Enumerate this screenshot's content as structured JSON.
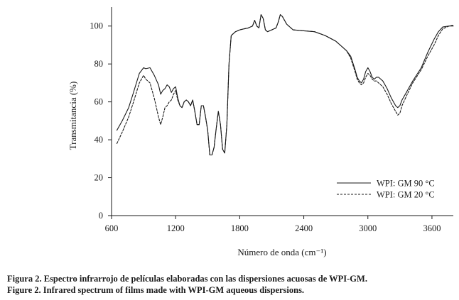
{
  "chart_data": {
    "type": "line",
    "title": "",
    "xlabel": "Número de onda (cm⁻¹)",
    "ylabel": "Transmitancia (%)",
    "xlim": [
      600,
      3800
    ],
    "ylim": [
      0,
      110
    ],
    "xticks": [
      600,
      1200,
      1800,
      2400,
      3000,
      3600
    ],
    "xtick_labels": [
      "600",
      "1200",
      "1800",
      "2400",
      "3000",
      "3600"
    ],
    "yticks": [
      0,
      20,
      40,
      60,
      80,
      100
    ],
    "ytick_labels": [
      "0",
      "20",
      "40",
      "60",
      "80",
      "100"
    ],
    "grid": false,
    "legend_position": "bottom-right",
    "series": [
      {
        "name": "WPI: GM 90 °C",
        "style": "solid",
        "color": "#1a1a1a",
        "x": [
          650,
          700,
          760,
          800,
          860,
          900,
          920,
          960,
          1000,
          1040,
          1060,
          1080,
          1100,
          1120,
          1140,
          1160,
          1180,
          1200,
          1220,
          1240,
          1260,
          1280,
          1300,
          1320,
          1340,
          1360,
          1380,
          1400,
          1420,
          1440,
          1460,
          1480,
          1500,
          1520,
          1540,
          1560,
          1580,
          1600,
          1620,
          1640,
          1660,
          1680,
          1700,
          1720,
          1760,
          1800,
          1840,
          1880,
          1920,
          1940,
          1960,
          1980,
          2000,
          2020,
          2040,
          2060,
          2100,
          2140,
          2160,
          2180,
          2200,
          2240,
          2300,
          2400,
          2500,
          2600,
          2700,
          2800,
          2840,
          2880,
          2900,
          2920,
          2940,
          2960,
          2980,
          3000,
          3020,
          3040,
          3060,
          3080,
          3100,
          3140,
          3180,
          3220,
          3260,
          3280,
          3300,
          3320,
          3360,
          3420,
          3500,
          3560,
          3620,
          3660,
          3700,
          3760,
          3800
        ],
        "y": [
          45,
          50,
          57,
          64,
          75,
          78,
          77.5,
          78,
          74,
          69,
          64,
          66,
          67,
          69,
          68,
          65,
          67,
          68,
          62,
          58,
          57,
          60,
          61,
          60,
          58,
          61,
          55,
          48,
          48,
          58,
          58,
          52,
          45,
          32,
          32,
          36,
          46,
          55,
          48,
          35,
          33,
          48,
          80,
          95,
          97,
          98,
          98.5,
          99,
          100,
          103,
          100,
          99,
          106,
          104,
          98,
          97,
          98,
          99,
          102,
          106,
          105,
          101,
          98,
          97.5,
          97,
          95,
          92,
          87,
          84,
          77,
          73,
          71,
          70,
          72,
          76,
          78,
          76,
          73,
          72,
          73,
          73,
          71,
          67,
          62,
          58,
          57,
          58,
          61,
          65,
          71,
          78,
          86,
          93,
          97,
          99.5,
          100,
          100
        ]
      },
      {
        "name": "WPI: GM 20 °C",
        "style": "dashed",
        "color": "#1a1a1a",
        "x": [
          650,
          700,
          760,
          800,
          860,
          900,
          920,
          960,
          1000,
          1040,
          1060,
          1080,
          1100,
          1120,
          1140,
          1160,
          1180,
          1200,
          1220,
          1240,
          1260,
          1280,
          1300,
          1320,
          1340,
          1360,
          1380,
          1400,
          1420,
          1440,
          1460,
          1480,
          1500,
          1520,
          1540,
          1560,
          1580,
          1600,
          1620,
          1640,
          1660,
          1680,
          1700,
          1720,
          1760,
          1800,
          1840,
          1880,
          1920,
          1940,
          1960,
          1980,
          2000,
          2020,
          2040,
          2060,
          2100,
          2140,
          2160,
          2180,
          2200,
          2240,
          2300,
          2400,
          2500,
          2600,
          2700,
          2800,
          2840,
          2880,
          2900,
          2920,
          2940,
          2960,
          2980,
          3000,
          3020,
          3040,
          3060,
          3080,
          3100,
          3140,
          3180,
          3220,
          3260,
          3280,
          3300,
          3320,
          3360,
          3420,
          3500,
          3560,
          3620,
          3660,
          3700,
          3760,
          3800
        ],
        "y": [
          38,
          44,
          52,
          59,
          70,
          74,
          72,
          70,
          62,
          52,
          48,
          52,
          57,
          58,
          60,
          61,
          64,
          66,
          61,
          58,
          57,
          60,
          61,
          60,
          58,
          61,
          55,
          48,
          48,
          58,
          58,
          52,
          45,
          32,
          32,
          36,
          46,
          55,
          48,
          35,
          33,
          48,
          80,
          95,
          97,
          98,
          98.5,
          99,
          100,
          103,
          100,
          99,
          106,
          104,
          98,
          97,
          98,
          99,
          102,
          106,
          105,
          101,
          98,
          97.5,
          97,
          95,
          92,
          87,
          83,
          76,
          72,
          70,
          69,
          70,
          73,
          75,
          74,
          72,
          71,
          71,
          70,
          68,
          64,
          59,
          55,
          53,
          54,
          58,
          63,
          70,
          77,
          84,
          90,
          95,
          98.5,
          100,
          100.5
        ]
      }
    ]
  },
  "captions": {
    "es": "Figura 2. Espectro infrarrojo de películas elaboradas con las dispersiones acuosas de WPI-GM.",
    "en": "Figure 2. Infrared spectrum of films made with WPI-GM aqueous dispersions."
  }
}
